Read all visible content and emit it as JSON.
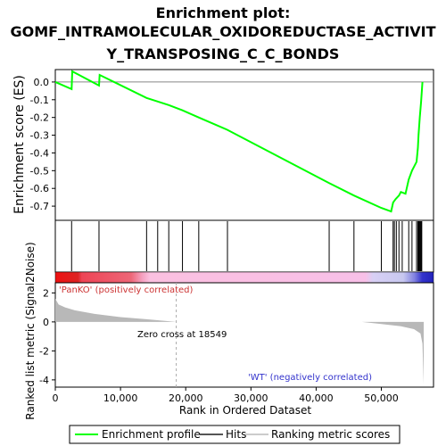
{
  "title_lines": [
    "Enrichment plot:",
    "GOMF_INTRAMOLECULAR_OXIDOREDUCTASE_ACTIVIT",
    "Y_TRANSPOSING_C_C_BONDS"
  ],
  "chart_data": {
    "type": "line",
    "es_panel": {
      "ylabel": "Enrichment score (ES)",
      "ylim": [
        -0.78,
        0.07
      ],
      "yticks": [
        0.0,
        -0.1,
        -0.2,
        -0.3,
        -0.4,
        -0.5,
        -0.6,
        -0.7
      ],
      "ytick_labels": [
        "0.0",
        "-0.1",
        "-0.2",
        "-0.3",
        "-0.4",
        "-0.5",
        "-0.6",
        "-0.7"
      ],
      "series_color": "#00ff00",
      "points": [
        [
          0,
          0.0
        ],
        [
          2500,
          -0.04
        ],
        [
          2600,
          0.06
        ],
        [
          6700,
          -0.02
        ],
        [
          6800,
          0.04
        ],
        [
          14000,
          -0.09
        ],
        [
          15700,
          -0.11
        ],
        [
          17400,
          -0.13
        ],
        [
          19500,
          -0.16
        ],
        [
          22000,
          -0.2
        ],
        [
          26400,
          -0.27
        ],
        [
          42000,
          -0.57
        ],
        [
          45800,
          -0.64
        ],
        [
          50000,
          -0.71
        ],
        [
          51500,
          -0.73
        ],
        [
          51800,
          -0.68
        ],
        [
          52200,
          -0.66
        ],
        [
          52700,
          -0.64
        ],
        [
          53000,
          -0.62
        ],
        [
          53700,
          -0.63
        ],
        [
          54200,
          -0.55
        ],
        [
          54700,
          -0.5
        ],
        [
          55400,
          -0.45
        ],
        [
          55600,
          -0.37
        ],
        [
          55700,
          -0.3
        ],
        [
          55900,
          -0.2
        ],
        [
          56100,
          -0.11
        ],
        [
          56300,
          0.0
        ]
      ]
    },
    "hits": [
      2500,
      6700,
      14000,
      15700,
      17400,
      19500,
      22000,
      26400,
      42000,
      45800,
      50000,
      51800,
      52000,
      52300,
      52700,
      53200,
      54200,
      54700,
      55400,
      55600,
      55700,
      55800,
      55900,
      56000,
      56100,
      56200
    ],
    "ranking_panel": {
      "ylabel": "Ranked list metric (Signal2Noise)",
      "xlabel": "Rank in Ordered Dataset",
      "xlim": [
        0,
        58000
      ],
      "ylim": [
        -4.5,
        2.7
      ],
      "yticks": [
        2,
        0,
        -2,
        -4
      ],
      "ytick_labels": [
        "2",
        "0",
        "-2",
        "-4"
      ],
      "xticks": [
        0,
        10000,
        20000,
        30000,
        40000,
        50000
      ],
      "xtick_labels": [
        "0",
        "10,000",
        "20,000",
        "30,000",
        "40,000",
        "50,000"
      ],
      "metric_points": [
        [
          0,
          1.6
        ],
        [
          500,
          1.2
        ],
        [
          1500,
          1.0
        ],
        [
          3000,
          0.8
        ],
        [
          6000,
          0.55
        ],
        [
          10000,
          0.33
        ],
        [
          14000,
          0.18
        ],
        [
          18549,
          0.0
        ],
        [
          47000,
          0.0
        ],
        [
          50000,
          -0.15
        ],
        [
          53000,
          -0.3
        ],
        [
          55000,
          -0.5
        ],
        [
          56000,
          -0.8
        ],
        [
          56300,
          -1.5
        ],
        [
          56500,
          -4.3
        ]
      ],
      "zero_cross_label": "Zero cross at 18549",
      "zero_cross": 18549,
      "pos_label": "'PanKO' (positively correlated)",
      "neg_label": "'WT' (negatively correlated)",
      "pos_color": "#cc3333",
      "neg_color": "#3333cc"
    },
    "legend": [
      "Enrichment profile",
      "Hits",
      "Ranking metric scores"
    ]
  }
}
